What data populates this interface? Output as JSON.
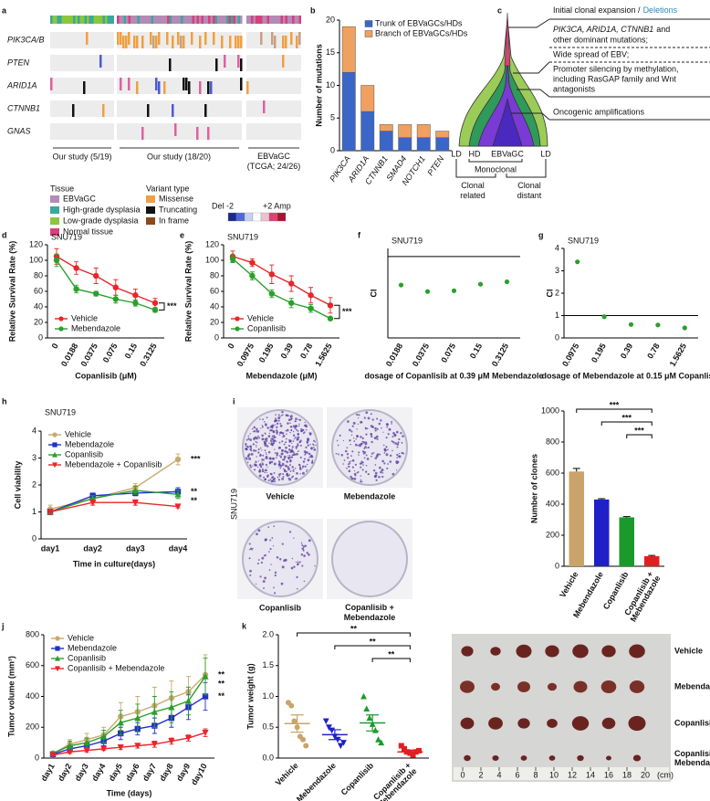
{
  "panel_letters": [
    "a",
    "b",
    "c",
    "d",
    "e",
    "f",
    "g",
    "h",
    "i",
    "j",
    "k"
  ],
  "oncoprint": {
    "genes": [
      "PIK3CA/B",
      "PTEN",
      "ARID1A",
      "CTNNB1",
      "GNAS"
    ],
    "groups": [
      "Our study (5/19)",
      "Our study (18/20)"
    ],
    "tcga": [
      "EBVaGC",
      "(TCGA; 24/26)"
    ],
    "tissue_title": "Tissue",
    "tissue": [
      {
        "name": "EBVaGC",
        "color": "#b48ab6"
      },
      {
        "name": "High-grade dysplasia",
        "color": "#3aa89a"
      },
      {
        "name": "Low-grade dysplasia",
        "color": "#8cc63e"
      },
      {
        "name": "Normal tissue",
        "color": "#d8407a"
      }
    ],
    "variant_title": "Variant type",
    "variants": [
      {
        "name": "Missense",
        "color": "#f0a040"
      },
      {
        "name": "Truncating",
        "color": "#111111"
      },
      {
        "name": "In frame",
        "color": "#8b4a1a"
      }
    ],
    "del": "Del -2",
    "amp": "+2 Amp"
  },
  "diagram": {
    "expansion": "Initial clonal expansion /",
    "deletions": "Deletions",
    "mutations": [
      "PIK3CA, ARID1A, CTNNB1",
      "and",
      "other dominant mutations;"
    ],
    "ebv": "Wide spread of EBV;",
    "silencing": [
      "Promoter silencing by methylation,",
      "including RasGAP family and Wnt",
      "antagonists"
    ],
    "amplifications": "Oncogenic amplifications",
    "stages": [
      "LD",
      "HD",
      "EBVaGC",
      "LD"
    ],
    "monoclonal": "Monoclonal",
    "related": [
      "Clonal",
      "related"
    ],
    "distant": [
      "Clonal",
      "distant"
    ]
  },
  "chart_data": [
    {
      "type": "bar",
      "stacked": true,
      "ylabel": "Number of mutations",
      "categories": [
        "PIK3CA",
        "ARID1A",
        "CTNNB1",
        "SMAD4",
        "NOTCH1",
        "PTEN"
      ],
      "series": [
        {
          "name": "Trunk of EBVaGCs/HDs",
          "color": "#3a66c8",
          "values": [
            12,
            6,
            3,
            2,
            2,
            2
          ]
        },
        {
          "name": "Branch of EBVaGCs/HDs",
          "color": "#f0a060",
          "values": [
            7,
            4,
            1,
            2,
            2,
            1
          ]
        }
      ],
      "ylim": [
        0,
        20
      ],
      "yticks": [
        0,
        5,
        10,
        15,
        20
      ],
      "legend": "upper right"
    },
    {
      "type": "line",
      "title": "SNU719",
      "ylabel": "Relative Survival Rate (%)",
      "xlabel": "Copanlisib (μM)",
      "categories": [
        "0",
        "0.0188",
        "0.0375",
        "0.075",
        "0.15",
        "0.3125"
      ],
      "series": [
        {
          "name": "Vehicle",
          "color": "#e8262a",
          "marker": "circle",
          "values": [
            105,
            90,
            80,
            65,
            55,
            45
          ],
          "errors": [
            10,
            8,
            10,
            10,
            8,
            6
          ]
        },
        {
          "name": "Mebendazole",
          "color": "#2aa02a",
          "marker": "circle",
          "values": [
            100,
            63,
            57,
            50,
            45,
            36
          ],
          "errors": [
            8,
            5,
            3,
            5,
            4,
            3
          ]
        }
      ],
      "ylim": [
        0,
        120
      ],
      "yticks": [
        0,
        20,
        40,
        60,
        80,
        100,
        120
      ],
      "annotation": "***",
      "legend": "lower left"
    },
    {
      "type": "line",
      "title": "SNU719",
      "ylabel": "Relative Survival Rate (%)",
      "xlabel": "Mebendazole (μM)",
      "categories": [
        "0",
        "0.0975",
        "0.195",
        "0.39",
        "0.78",
        "1.5625"
      ],
      "series": [
        {
          "name": "Vehicle",
          "color": "#e8262a",
          "marker": "circle",
          "values": [
            105,
            97,
            82,
            70,
            55,
            42
          ],
          "errors": [
            7,
            5,
            12,
            10,
            10,
            10
          ]
        },
        {
          "name": "Copanlisib",
          "color": "#2aa02a",
          "marker": "circle",
          "values": [
            102,
            80,
            57,
            45,
            38,
            25
          ],
          "errors": [
            5,
            5,
            5,
            6,
            5,
            2
          ]
        }
      ],
      "ylim": [
        0,
        120
      ],
      "yticks": [
        0,
        20,
        40,
        60,
        80,
        100,
        120
      ],
      "annotation": "***",
      "legend": "lower left"
    },
    {
      "type": "scatter",
      "title": "SNU719",
      "ylabel": "CI",
      "xlabel": "dosage of Copanlisib at 0.39 μM Mebendazole",
      "categories": [
        "0.0188",
        "0.0375",
        "0.075",
        "0.15",
        "0.3125"
      ],
      "values": [
        0.65,
        0.57,
        0.58,
        0.66,
        0.69
      ],
      "color": "#2aa02a",
      "ylim": [
        0,
        1.1
      ],
      "refline": 1
    },
    {
      "type": "scatter",
      "title": "SNU719",
      "ylabel": "CI",
      "xlabel": "dosage of Mebendazole at 0.15 μM Copanlisib",
      "categories": [
        "0.0975",
        "0.195",
        "0.39",
        "0.78",
        "1.5625"
      ],
      "values": [
        3.4,
        0.95,
        0.6,
        0.58,
        0.45
      ],
      "color": "#2aa02a",
      "ylim": [
        0,
        4
      ],
      "yticks": [
        0,
        1,
        2,
        3,
        4
      ],
      "refline": 1
    },
    {
      "type": "line",
      "title": "SNU719",
      "ylabel": "Cell viability",
      "xlabel": "Time in culture(days)",
      "categories": [
        "day1",
        "day2",
        "day3",
        "day4"
      ],
      "series": [
        {
          "name": "Vehicle",
          "color": "#c8a96e",
          "marker": "circle",
          "values": [
            1.1,
            1.5,
            1.9,
            2.95
          ],
          "errors": [
            0.15,
            0.1,
            0.15,
            0.2
          ],
          "end_label": "***"
        },
        {
          "name": "Mebendazole",
          "color": "#2030c8",
          "marker": "square",
          "values": [
            1.0,
            1.6,
            1.7,
            1.75
          ],
          "errors": [
            0.1,
            0.1,
            0.1,
            0.15
          ],
          "end_label": "**"
        },
        {
          "name": "Copanlisib",
          "color": "#2aa02a",
          "marker": "triangle",
          "values": [
            1.0,
            1.5,
            1.8,
            1.65
          ],
          "errors": [
            0.1,
            0.1,
            0.15,
            0.15
          ],
          "end_label": "**"
        },
        {
          "name": "Mebendazole + Copanlisib",
          "color": "#e8262a",
          "marker": "triangle-down",
          "values": [
            1.0,
            1.35,
            1.35,
            1.2
          ],
          "errors": [
            0.1,
            0.1,
            0.1,
            0.05
          ]
        }
      ],
      "ylim": [
        0,
        4
      ],
      "yticks": [
        0,
        1,
        2,
        3,
        4
      ],
      "legend": "upper left"
    },
    {
      "type": "bar",
      "ylabel": "Number of clones",
      "categories": [
        "Vehicle",
        "Mebendazole",
        "Copanlisib",
        [
          "Copanlisib +",
          "Mebendazole"
        ]
      ],
      "values": [
        610,
        430,
        315,
        65
      ],
      "errors": [
        20,
        5,
        5,
        5
      ],
      "colors": [
        "#c9a46a",
        "#2020c8",
        "#1a9a2a",
        "#e02020"
      ],
      "ylim": [
        0,
        1000
      ],
      "yticks": [
        0,
        200,
        400,
        600,
        800,
        1000
      ],
      "brackets": [
        {
          "from": "Vehicle",
          "to": "Copanlisib + Mebendazole",
          "label": "***"
        },
        {
          "from": "Mebendazole",
          "to": "Copanlisib + Mebendazole",
          "label": "***"
        },
        {
          "from": "Copanlisib",
          "to": "Copanlisib + Mebendazole",
          "label": "***"
        }
      ]
    },
    {
      "type": "line",
      "ylabel": "Tumor volume (mm³)",
      "xlabel": "Time (days)",
      "categories": [
        "day1",
        "day2",
        "day3",
        "day4",
        "day5",
        "day6",
        "day7",
        "day8",
        "day9",
        "day10"
      ],
      "series": [
        {
          "name": "Vehicle",
          "color": "#c8a96e",
          "marker": "circle",
          "values": [
            30,
            90,
            120,
            150,
            270,
            300,
            340,
            390,
            430,
            540
          ],
          "errors": [
            10,
            30,
            40,
            50,
            90,
            100,
            120,
            110,
            100,
            130
          ],
          "end_label": "**"
        },
        {
          "name": "Mebendazole",
          "color": "#2030c8",
          "marker": "square",
          "values": [
            25,
            60,
            80,
            110,
            160,
            190,
            210,
            260,
            330,
            400
          ],
          "errors": [
            10,
            20,
            20,
            30,
            40,
            40,
            50,
            60,
            80,
            90
          ],
          "end_label": "**"
        },
        {
          "name": "Copanlisib",
          "color": "#2aa02a",
          "marker": "triangle",
          "values": [
            30,
            80,
            100,
            140,
            230,
            260,
            300,
            330,
            370,
            530
          ],
          "errors": [
            10,
            30,
            30,
            40,
            80,
            90,
            100,
            100,
            90,
            120
          ],
          "end_label": "**"
        },
        {
          "name": "Copanlisib + Mebendazole",
          "color": "#e8262a",
          "marker": "triangle-down",
          "values": [
            20,
            40,
            50,
            60,
            70,
            80,
            90,
            110,
            130,
            165
          ],
          "errors": [
            5,
            10,
            10,
            10,
            15,
            15,
            20,
            20,
            20,
            25
          ]
        }
      ],
      "ylim": [
        0,
        800
      ],
      "yticks": [
        0,
        200,
        400,
        600,
        800
      ],
      "legend": "upper left"
    },
    {
      "type": "strip",
      "ylabel": "Tumor weight (g)",
      "categories": [
        "Vehicle",
        "Mebendazole",
        "Copanlisib",
        [
          "Copanlisib +",
          "Mebendazole"
        ]
      ],
      "points": [
        [
          0.9,
          0.85,
          0.6,
          0.5,
          0.35,
          0.3,
          0.2
        ],
        [
          0.6,
          0.5,
          0.45,
          0.35,
          0.3,
          0.2,
          0.25
        ],
        [
          1.0,
          0.8,
          0.65,
          0.55,
          0.45,
          0.3,
          0.25
        ],
        [
          0.2,
          0.15,
          0.1,
          0.08,
          0.05,
          0.1,
          0.12
        ]
      ],
      "values": [
        0.56,
        0.38,
        0.57,
        0.1
      ],
      "errors": [
        0.14,
        0.08,
        0.13,
        0.03
      ],
      "colors": [
        "#c9a46a",
        "#2020c8",
        "#1a9a2a",
        "#e02020"
      ],
      "markers": [
        "circle",
        "triangle-down",
        "triangle",
        "square"
      ],
      "ylim": [
        0,
        2
      ],
      "yticks": [
        {
          "value": 0,
          "label": "0.0"
        },
        0.5,
        {
          "value": 1,
          "label": "1.0"
        },
        1.5,
        {
          "value": 2,
          "label": "2.0"
        }
      ],
      "brackets": [
        {
          "from": "Vehicle",
          "to": "Copanlisib + Mebendazole",
          "label": "**"
        },
        {
          "from": "Mebendazole",
          "to": "Copanlisib + Mebendazole",
          "label": "**"
        },
        {
          "from": "Copanlisib",
          "to": "Copanlisib + Mebendazole",
          "label": "**"
        }
      ]
    }
  ],
  "photos": {
    "i_side": "SNU719",
    "i_plates": [
      "Vehicle",
      "Mebendazole",
      "Copanlisib",
      [
        "Copanlisib +",
        "Mebendazole"
      ]
    ],
    "k_rows": [
      "Vehicle",
      "Mebendazole",
      "Copanlisib",
      [
        "Copanlisib +",
        "Mebendazole"
      ]
    ],
    "ruler": [
      "0",
      "2",
      "4",
      "6",
      "8",
      "10",
      "12",
      "14",
      "16",
      "18",
      "20"
    ],
    "ruler_unit": "(cm)"
  }
}
